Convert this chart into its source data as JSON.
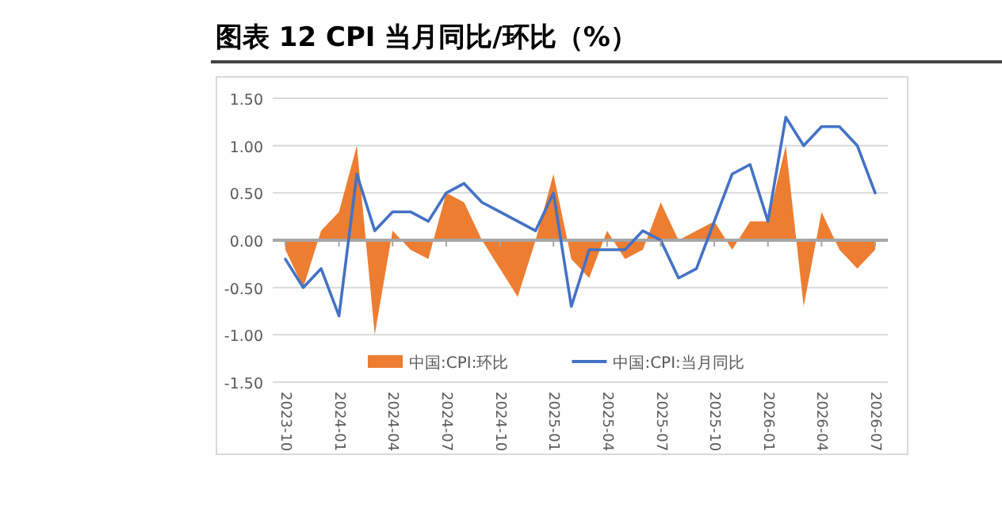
{
  "chart_data": {
    "type": "line",
    "title": "图表 12 CPI 当月同比/环比（%）",
    "categories": [
      "2023-10",
      null,
      null,
      "2024-01",
      null,
      null,
      "2024-04",
      null,
      null,
      "2024-07",
      null,
      null,
      "2024-10",
      null,
      null,
      "2025-01",
      null,
      null,
      "2025-04",
      null,
      null,
      "2025-07",
      null,
      null,
      "2025-10",
      null,
      null,
      "2026-01",
      null,
      null,
      "2026-04",
      null,
      null,
      "2026-07"
    ],
    "series": [
      {
        "name": "中国:CPI:环比",
        "type": "area",
        "color": "#ed7d31",
        "values": [
          -0.1,
          -0.5,
          0.1,
          0.3,
          1.0,
          -1.0,
          0.1,
          -0.1,
          -0.2,
          0.5,
          0.4,
          0.0,
          -0.3,
          -0.6,
          0.0,
          0.7,
          -0.2,
          -0.4,
          0.1,
          -0.2,
          -0.1,
          0.4,
          0.0,
          0.1,
          0.2,
          -0.1,
          0.2,
          0.2,
          1.0,
          -0.7,
          0.3,
          -0.1,
          -0.3,
          -0.1
        ]
      },
      {
        "name": "中国:CPI:当月同比",
        "color": "#4472c4",
        "values": [
          -0.2,
          -0.5,
          -0.3,
          -0.8,
          0.7,
          0.1,
          0.3,
          0.3,
          0.2,
          0.5,
          0.6,
          0.4,
          0.3,
          0.2,
          0.1,
          0.5,
          -0.7,
          -0.1,
          -0.1,
          -0.1,
          0.1,
          0.0,
          -0.4,
          -0.3,
          0.2,
          0.7,
          0.8,
          0.2,
          1.3,
          1.0,
          1.2,
          1.2,
          1.0,
          0.5
        ]
      }
    ],
    "ylim": [
      -1.5,
      1.5
    ],
    "yticks": [
      {
        "value": -1.5,
        "label": "-1.50"
      },
      {
        "value": -1.0,
        "label": "-1.00"
      },
      {
        "value": -0.5,
        "label": "-0.50"
      },
      {
        "value": 0,
        "label": "0.00"
      },
      {
        "value": 0.5,
        "label": "0.50"
      },
      {
        "value": 1.0,
        "label": "1.00"
      },
      {
        "value": 1.5,
        "label": "1.50"
      }
    ],
    "grid": "y",
    "legend": "bottom"
  }
}
